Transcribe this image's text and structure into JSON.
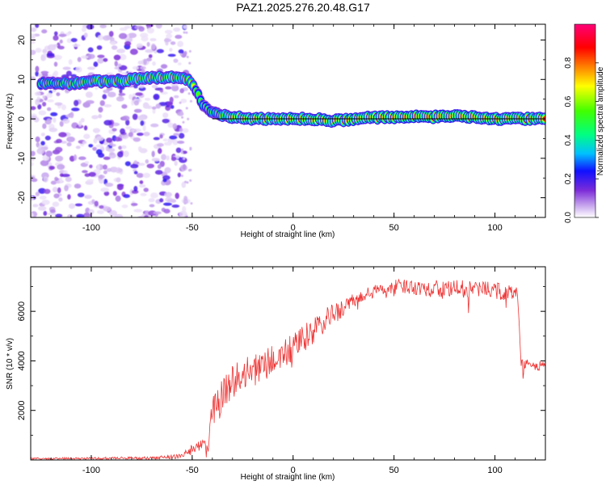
{
  "title": "PAZ1.2025.276.20.48.G17",
  "chart_data": [
    {
      "type": "heatmap",
      "xlabel": "Height of straight line (km)",
      "ylabel": "Frequency (Hz)",
      "xlim": [
        -130,
        125
      ],
      "ylim": [
        -25,
        24
      ],
      "xticks": [
        -100,
        -50,
        0,
        50,
        100
      ],
      "yticks": [
        -20,
        -10,
        0,
        10,
        20
      ],
      "ridge": {
        "x": [
          -125,
          -110,
          -100,
          -90,
          -80,
          -70,
          -60,
          -52,
          -48,
          -44,
          -40,
          -35,
          -30,
          -20,
          -10,
          0,
          10,
          20,
          30,
          40,
          50,
          60,
          70,
          80,
          90,
          100,
          110,
          125
        ],
        "y": [
          9,
          9,
          9.5,
          9.5,
          10,
          10.5,
          10.5,
          10,
          7,
          3,
          1.5,
          1,
          0.5,
          0,
          0,
          0,
          0,
          -0.5,
          0,
          0.3,
          0.5,
          0.5,
          0.5,
          0.8,
          0.5,
          0,
          0,
          0
        ],
        "amplitude": [
          0.65,
          0.68,
          0.72,
          0.72,
          0.76,
          0.76,
          0.78,
          0.72,
          0.62,
          0.6,
          0.62,
          0.7,
          0.82,
          0.9,
          0.85,
          0.95,
          0.92,
          0.9,
          0.95,
          0.95,
          0.95,
          0.95,
          0.98,
          0.98,
          0.96,
          0.95,
          0.95,
          0.9
        ]
      },
      "colorbar": {
        "label": "Normalized spectral amplitude",
        "ticks": [
          "0.0",
          "0.2",
          "0.4",
          "0.6",
          "0.8"
        ],
        "colors": [
          "#ffffff",
          "#c8a8ee",
          "#7c2cd8",
          "#1010ff",
          "#00c0ff",
          "#00ff80",
          "#40ff00",
          "#ffff00",
          "#ff8000",
          "#ff0000",
          "#ff0078"
        ]
      }
    },
    {
      "type": "line",
      "xlabel": "Height of straight line (km)",
      "ylabel": "SNR (10 * v/v)",
      "xlim": [
        -130,
        125
      ],
      "ylim": [
        0,
        7800
      ],
      "xticks": [
        -100,
        -50,
        0,
        50,
        100
      ],
      "yticks": [
        2000,
        4000,
        6000
      ],
      "line_color": "#ee3333",
      "envelope": {
        "x": [
          -130,
          -100,
          -70,
          -55,
          -50,
          -45,
          -42,
          -40,
          -35,
          -30,
          -20,
          -10,
          0,
          10,
          20,
          30,
          40,
          50,
          60,
          70,
          80,
          90,
          100,
          108,
          111,
          113,
          118,
          125
        ],
        "y": [
          50,
          60,
          80,
          150,
          450,
          700,
          500,
          2000,
          2700,
          3200,
          3600,
          4000,
          4500,
          5200,
          5900,
          6400,
          6800,
          7000,
          7000,
          6900,
          6900,
          6900,
          6850,
          6700,
          6900,
          3900,
          3800,
          3800
        ],
        "noise": [
          60,
          60,
          70,
          120,
          300,
          350,
          300,
          800,
          900,
          900,
          800,
          800,
          750,
          700,
          550,
          400,
          350,
          350,
          400,
          450,
          450,
          450,
          450,
          450,
          300,
          300,
          250,
          250
        ]
      }
    }
  ]
}
